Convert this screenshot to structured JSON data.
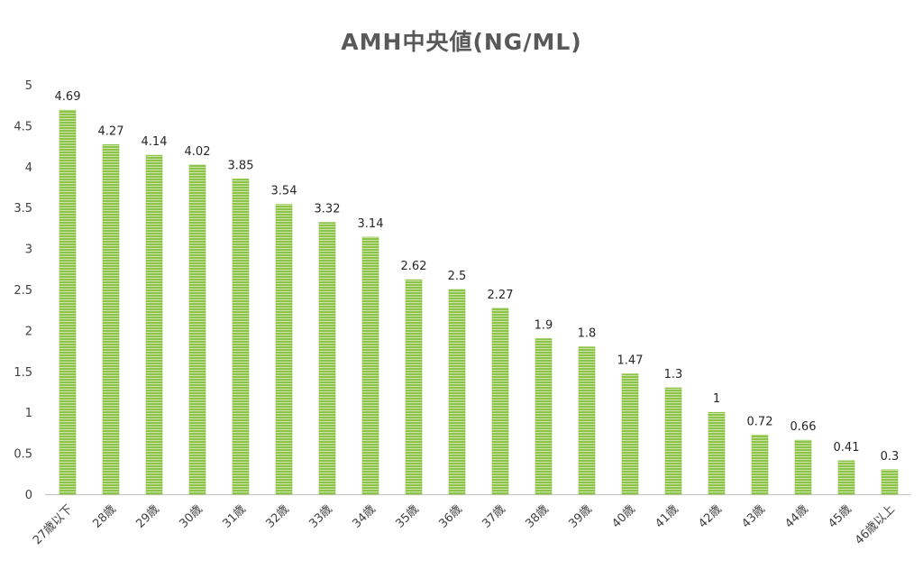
{
  "chart_data": {
    "type": "bar",
    "title": "AMH中央値(NG/ML)",
    "xlabel": "",
    "ylabel": "",
    "ylim": [
      0,
      5
    ],
    "yticks": [
      "0",
      "0.5",
      "1",
      "1.5",
      "2",
      "2.5",
      "3",
      "3.5",
      "4",
      "4.5",
      "5"
    ],
    "grid": false,
    "legend": "none",
    "categories": [
      "27歳以下",
      "28歳",
      "29歳",
      "30歳",
      "31歳",
      "32歳",
      "33歳",
      "34歳",
      "35歳",
      "36歳",
      "37歳",
      "38歳",
      "39歳",
      "40歳",
      "41歳",
      "42歳",
      "43歳",
      "44歳",
      "45歳",
      "46歳以上"
    ],
    "values": [
      4.69,
      4.27,
      4.14,
      4.02,
      3.85,
      3.54,
      3.32,
      3.14,
      2.62,
      2.5,
      2.27,
      1.9,
      1.8,
      1.47,
      1.3,
      1,
      0.72,
      0.66,
      0.41,
      0.3
    ],
    "value_labels": [
      "4.69",
      "4.27",
      "4.14",
      "4.02",
      "3.85",
      "3.54",
      "3.32",
      "3.14",
      "2.62",
      "2.5",
      "2.27",
      "1.9",
      "1.8",
      "1.47",
      "1.3",
      "1",
      "0.72",
      "0.66",
      "0.41",
      "0.3"
    ],
    "colors": {
      "bar": "#8dc448",
      "bar_stripe": "#ffffff",
      "axis": "#bfbfbf"
    }
  }
}
